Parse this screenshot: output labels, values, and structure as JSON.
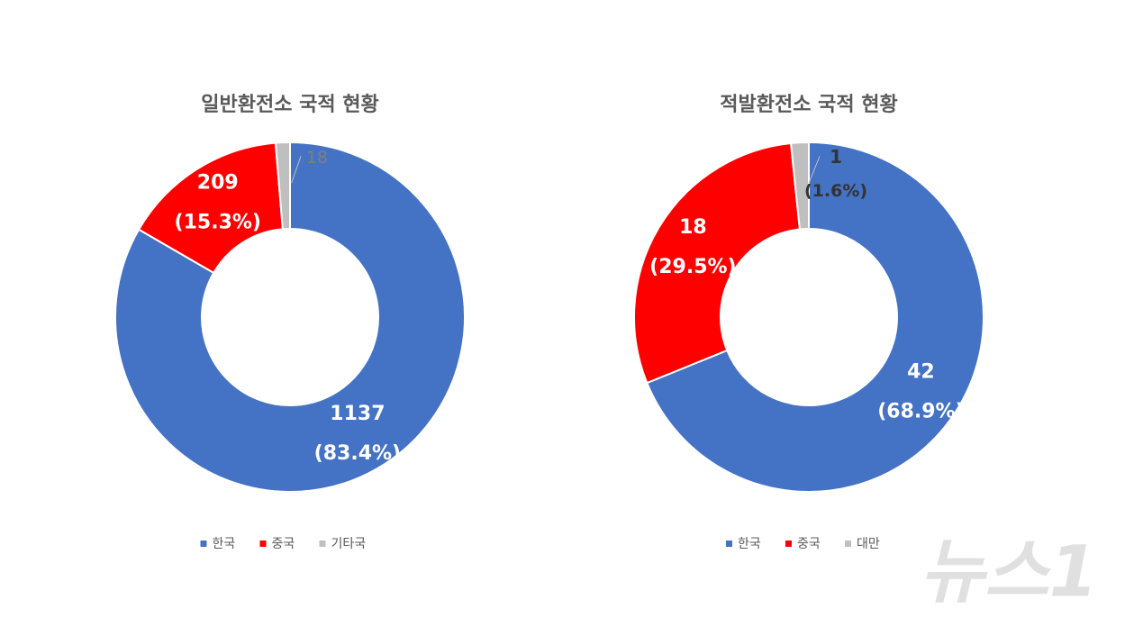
{
  "chart_data": [
    {
      "type": "pie",
      "title": "일반환전소 국적 현황",
      "categories": [
        "한국",
        "중국",
        "기타국"
      ],
      "values": [
        1137,
        209,
        18
      ],
      "percent_labels": [
        "(83.4%)",
        "(15.3%)",
        null
      ],
      "colors": [
        "#4472c4",
        "#ff0000",
        "#bfbfbf"
      ],
      "donut": true,
      "legend": "bottom"
    },
    {
      "type": "pie",
      "title": "적발환전소 국적 현황",
      "categories": [
        "한국",
        "중국",
        "대만"
      ],
      "values": [
        42,
        18,
        1
      ],
      "percent_labels": [
        "(68.9%)",
        "(29.5%)",
        "(1.6%)"
      ],
      "colors": [
        "#4472c4",
        "#ff0000",
        "#bfbfbf"
      ],
      "donut": true,
      "legend": "bottom"
    }
  ],
  "watermark": "뉴스1"
}
